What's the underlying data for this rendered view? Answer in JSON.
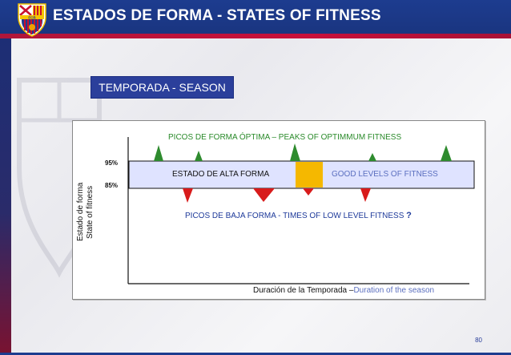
{
  "header": {
    "title": "ESTADOS DE FORMA  - STATES OF FITNESS",
    "logo_letters": "FCB"
  },
  "season_box": "TEMPORADA  - SEASON",
  "chart": {
    "y_label_es": "Estado de forma",
    "y_label_en": "State of fitness",
    "pct_high": "95%",
    "pct_low": "85%",
    "peaks_label": "PICOS DE FORMA ÓPTIMA – PEAKS OF OPTIMMUM FITNESS",
    "band_label_es": "ESTADO DE ALTA FORMA",
    "band_label_en": "GOOD LEVELS OF FITNESS",
    "low_label": "PICOS DE BAJA FORMA  -  TIMES OF LOW LEVEL FITNESS ",
    "low_label_q": "?",
    "x_label_es": "Duración de la Temporada –",
    "x_label_en": "Duration of the season",
    "colors": {
      "peak": "#2e8b2e",
      "low": "#d81b1b",
      "band": "#dfe3ff",
      "marker": "#f5b800"
    }
  },
  "footer": {
    "page_number": "80"
  }
}
